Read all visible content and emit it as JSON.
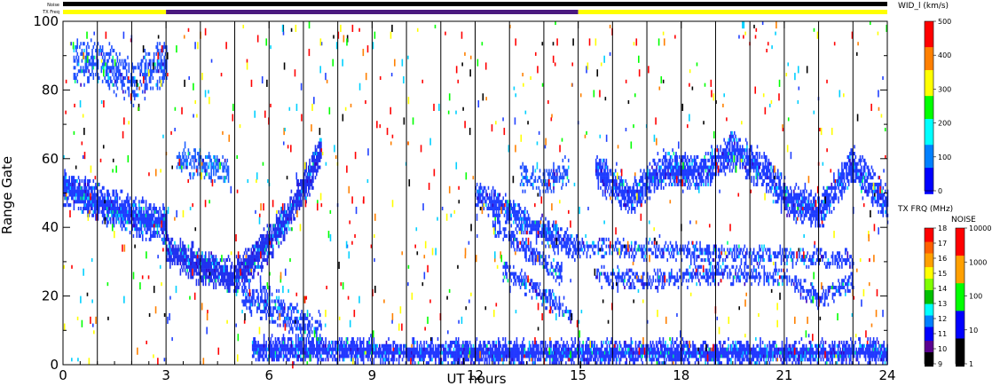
{
  "chart_data": {
    "type": "heatmap",
    "xlabel": "UT hours",
    "ylabel": "Range Gate",
    "xlim": [
      0,
      24
    ],
    "ylim": [
      0,
      100
    ],
    "x_ticks": [
      0,
      3,
      6,
      9,
      12,
      15,
      18,
      21,
      24
    ],
    "y_ticks": [
      0,
      20,
      40,
      60,
      80,
      100
    ],
    "grid_x_hours": [
      1,
      2,
      3,
      4,
      5,
      6,
      7,
      8,
      9,
      10,
      11,
      12,
      13,
      14,
      15,
      16,
      17,
      18,
      19,
      20,
      21,
      22,
      23
    ],
    "status_bars": {
      "noise_label": "Noise",
      "txfreq_label": "TX Freq",
      "noise_color": "#000000",
      "txfreq_segments": [
        {
          "start": 0,
          "end": 3,
          "color": "#ffff00"
        },
        {
          "start": 3,
          "end": 15,
          "color": "#4b1a80"
        },
        {
          "start": 15,
          "end": 24,
          "color": "#ffff00"
        }
      ]
    },
    "bands": [
      {
        "name": "B1",
        "center": [
          [
            0,
            51
          ],
          [
            1,
            47
          ],
          [
            2,
            43
          ],
          [
            3,
            40
          ]
        ],
        "halfwidth": 4,
        "color": "#1f3cff",
        "density": 0.9
      },
      {
        "name": "B2",
        "center": [
          [
            0.3,
            88
          ],
          [
            1.2,
            87
          ],
          [
            2,
            82
          ],
          [
            3,
            88
          ]
        ],
        "halfwidth": 5,
        "color": "#2050ff",
        "density": 0.55
      },
      {
        "name": "B3",
        "center": [
          [
            3,
            33
          ],
          [
            4,
            28
          ],
          [
            5,
            25
          ],
          [
            5.8,
            33
          ],
          [
            6.5,
            42
          ],
          [
            7.2,
            55
          ],
          [
            7.5,
            62
          ]
        ],
        "halfwidth": 4,
        "color": "#2030ef",
        "density": 0.9
      },
      {
        "name": "B4",
        "center": [
          [
            3.3,
            60
          ],
          [
            4,
            58
          ],
          [
            4.8,
            56
          ]
        ],
        "halfwidth": 3,
        "color": "#2060ff",
        "density": 0.6
      },
      {
        "name": "B5",
        "center": [
          [
            5.2,
            20
          ],
          [
            6,
            17
          ],
          [
            7,
            11
          ],
          [
            7.5,
            9
          ]
        ],
        "halfwidth": 4,
        "color": "#2040ff",
        "density": 0.55
      },
      {
        "name": "B6",
        "center": [
          [
            5.5,
            4
          ],
          [
            7,
            4
          ],
          [
            8,
            4
          ],
          [
            10,
            3
          ],
          [
            12,
            3
          ],
          [
            15,
            3
          ],
          [
            18,
            3
          ],
          [
            21,
            3
          ],
          [
            24,
            3
          ]
        ],
        "halfwidth": 2.5,
        "color": "#2238ff",
        "density": 0.92
      },
      {
        "name": "B7",
        "center": [
          [
            12,
            49
          ],
          [
            13,
            44
          ],
          [
            14,
            38
          ],
          [
            15,
            33
          ]
        ],
        "halfwidth": 3,
        "color": "#2040ff",
        "density": 0.8
      },
      {
        "name": "B8",
        "center": [
          [
            12.5,
            40
          ],
          [
            13.5,
            33
          ],
          [
            14.5,
            26
          ]
        ],
        "halfwidth": 2,
        "color": "#2040ff",
        "density": 0.6
      },
      {
        "name": "B9",
        "center": [
          [
            12.8,
            27
          ],
          [
            13.8,
            21
          ],
          [
            14.8,
            14
          ]
        ],
        "halfwidth": 2,
        "color": "#2040ff",
        "density": 0.6
      },
      {
        "name": "B10",
        "center": [
          [
            13.3,
            55
          ],
          [
            14,
            52
          ],
          [
            14.7,
            56
          ]
        ],
        "halfwidth": 3,
        "color": "#2050ff",
        "density": 0.5
      },
      {
        "name": "B11",
        "center": [
          [
            15.5,
            56
          ],
          [
            16.5,
            48
          ],
          [
            17.5,
            57
          ],
          [
            18.5,
            55
          ],
          [
            19.5,
            62
          ],
          [
            20.5,
            55
          ],
          [
            21,
            48
          ],
          [
            22,
            44
          ],
          [
            23,
            58
          ],
          [
            24,
            46
          ]
        ],
        "halfwidth": 4,
        "color": "#1f3cff",
        "density": 0.8
      },
      {
        "name": "B12",
        "center": [
          [
            15,
            34
          ],
          [
            17,
            33
          ],
          [
            19,
            32
          ],
          [
            21,
            31
          ],
          [
            23,
            30
          ]
        ],
        "halfwidth": 2,
        "color": "#2040ff",
        "density": 0.55
      },
      {
        "name": "B13",
        "center": [
          [
            15.5,
            25
          ],
          [
            17,
            24
          ],
          [
            19,
            26
          ],
          [
            21,
            25
          ],
          [
            22,
            19
          ],
          [
            23,
            24
          ]
        ],
        "halfwidth": 2,
        "color": "#2040ff",
        "density": 0.55
      }
    ],
    "colorbars": [
      {
        "title": "WID_l (km/s)",
        "ticks": [
          "500",
          "400",
          "300",
          "200",
          "100",
          "0"
        ],
        "colors": [
          "#ff0000",
          "#ff8000",
          "#ffff00",
          "#00ff00",
          "#00ffff",
          "#0080ff",
          "#0000ff"
        ]
      },
      {
        "title": "TX FRQ (MHz)",
        "ticks": [
          "18",
          "17",
          "16",
          "15",
          "14",
          "13",
          "12",
          "11",
          "10",
          "9"
        ],
        "colors": [
          "#ff0000",
          "#ff6000",
          "#ffa000",
          "#ffff00",
          "#80ff00",
          "#00c000",
          "#00ffff",
          "#0080ff",
          "#0000ff",
          "#5a0090",
          "#000000"
        ]
      },
      {
        "title": "NOISE",
        "ticks": [
          "10000",
          "1000",
          "100",
          "10",
          "1"
        ],
        "colors": [
          "#ff0000",
          "#ffa000",
          "#00ff00",
          "#0000ff",
          "#000000"
        ]
      }
    ]
  }
}
